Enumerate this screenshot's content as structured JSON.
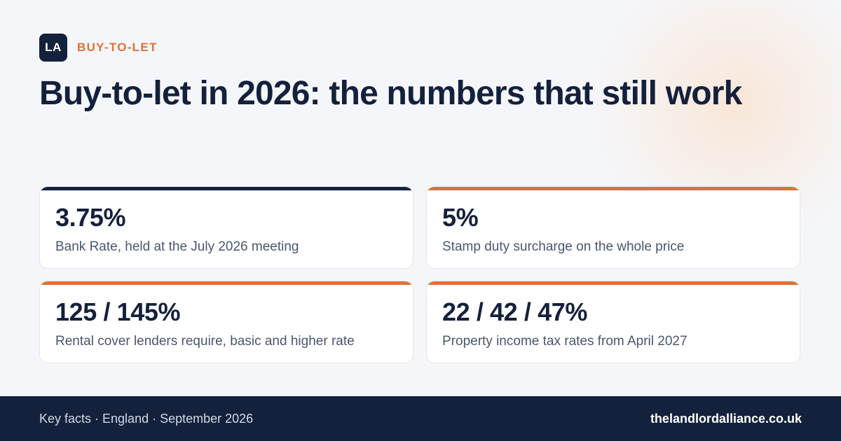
{
  "colors": {
    "navy": "#14213d",
    "orange": "#e07135",
    "background": "#f5f6fa",
    "card": "#ffffff",
    "muted_text": "#4a5670"
  },
  "brand": {
    "logo_text": "LA",
    "category": "BUY-TO-LET"
  },
  "title": "Buy-to-let in 2026: the numbers that still work",
  "stats": [
    {
      "value": "3.75%",
      "label": "Bank Rate, held at the July 2026 meeting",
      "accent": "#14213d"
    },
    {
      "value": "5%",
      "label": "Stamp duty surcharge on the whole price",
      "accent": "#e07135"
    },
    {
      "value": "125 / 145%",
      "label": "Rental cover lenders require, basic and higher rate",
      "accent": "#e07135"
    },
    {
      "value": "22 / 42 / 47%",
      "label": "Property income tax rates from April 2027",
      "accent": "#e07135"
    }
  ],
  "footer": {
    "meta": "Key facts · England · September 2026",
    "url": "thelandlordalliance.co.uk"
  }
}
